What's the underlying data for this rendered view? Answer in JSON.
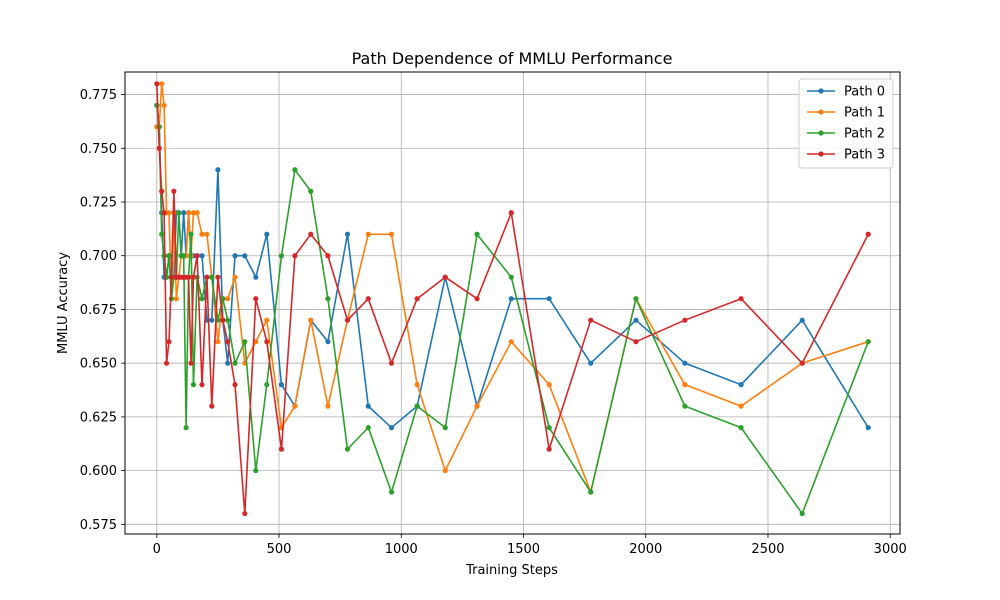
{
  "chart_data": {
    "type": "line",
    "title": "Path Dependence of MMLU Performance",
    "xlabel": "Training Steps",
    "ylabel": "MMLU Accuracy",
    "xlim": [
      -130,
      3040
    ],
    "ylim": [
      0.5705,
      0.7855
    ],
    "xticks": [
      0,
      500,
      1000,
      1500,
      2000,
      2500,
      3000
    ],
    "yticks": [
      0.575,
      0.6,
      0.625,
      0.65,
      0.675,
      0.7,
      0.725,
      0.75,
      0.775
    ],
    "ytick_labels": [
      "0.575",
      "0.600",
      "0.625",
      "0.650",
      "0.675",
      "0.700",
      "0.725",
      "0.750",
      "0.775"
    ],
    "grid": true,
    "legend_position": "top-right",
    "x": [
      0,
      10,
      20,
      30,
      40,
      50,
      60,
      70,
      80,
      90,
      100,
      110,
      120,
      130,
      140,
      150,
      165,
      185,
      205,
      225,
      250,
      270,
      290,
      320,
      360,
      405,
      450,
      510,
      565,
      630,
      700,
      780,
      865,
      960,
      1065,
      1180,
      1310,
      1450,
      1605,
      1775,
      1960,
      2160,
      2390,
      2640,
      2910
    ],
    "series": [
      {
        "name": "Path 0",
        "color": "#1f77b4",
        "values": [
          0.77,
          0.76,
          0.72,
          0.69,
          0.69,
          0.7,
          0.69,
          0.69,
          0.72,
          0.72,
          0.7,
          0.72,
          0.7,
          0.72,
          0.7,
          0.7,
          0.7,
          0.7,
          0.67,
          0.67,
          0.74,
          0.67,
          0.65,
          0.7,
          0.7,
          0.69,
          0.71,
          0.64,
          0.63,
          0.67,
          0.66,
          0.71,
          0.63,
          0.62,
          0.63,
          0.69,
          0.63,
          0.68,
          0.68,
          0.65,
          0.67,
          0.65,
          0.64,
          0.67,
          0.62
        ]
      },
      {
        "name": "Path 1",
        "color": "#ff7f0e",
        "values": [
          0.76,
          0.76,
          0.78,
          0.77,
          0.72,
          0.72,
          0.68,
          0.72,
          0.68,
          0.69,
          0.7,
          0.7,
          0.7,
          0.72,
          0.7,
          0.72,
          0.72,
          0.71,
          0.71,
          0.69,
          0.66,
          0.68,
          0.68,
          0.69,
          0.65,
          0.66,
          0.67,
          0.62,
          0.63,
          0.67,
          0.63,
          0.67,
          0.71,
          0.71,
          0.64,
          0.6,
          0.63,
          0.66,
          0.64,
          0.59,
          0.68,
          0.64,
          0.63,
          0.65,
          0.66
        ]
      },
      {
        "name": "Path 2",
        "color": "#2ca02c",
        "values": [
          0.77,
          0.76,
          0.71,
          0.7,
          0.69,
          0.7,
          0.68,
          0.69,
          0.69,
          0.72,
          0.7,
          0.7,
          0.62,
          0.69,
          0.71,
          0.64,
          0.69,
          0.68,
          0.69,
          0.69,
          0.67,
          0.68,
          0.67,
          0.65,
          0.66,
          0.6,
          0.64,
          0.7,
          0.74,
          0.73,
          0.68,
          0.61,
          0.62,
          0.59,
          0.63,
          0.62,
          0.71,
          0.69,
          0.62,
          0.59,
          0.68,
          0.63,
          0.62,
          0.58,
          0.66
        ]
      },
      {
        "name": "Path 3",
        "color": "#d62728",
        "values": [
          0.78,
          0.75,
          0.73,
          0.72,
          0.65,
          0.66,
          0.69,
          0.73,
          0.69,
          0.69,
          0.69,
          0.69,
          0.69,
          0.69,
          0.65,
          0.69,
          0.7,
          0.64,
          0.69,
          0.63,
          0.69,
          0.67,
          0.66,
          0.64,
          0.58,
          0.68,
          0.66,
          0.61,
          0.7,
          0.71,
          0.7,
          0.67,
          0.68,
          0.65,
          0.68,
          0.69,
          0.68,
          0.72,
          0.61,
          0.67,
          0.66,
          0.67,
          0.68,
          0.65,
          0.71
        ]
      }
    ]
  }
}
